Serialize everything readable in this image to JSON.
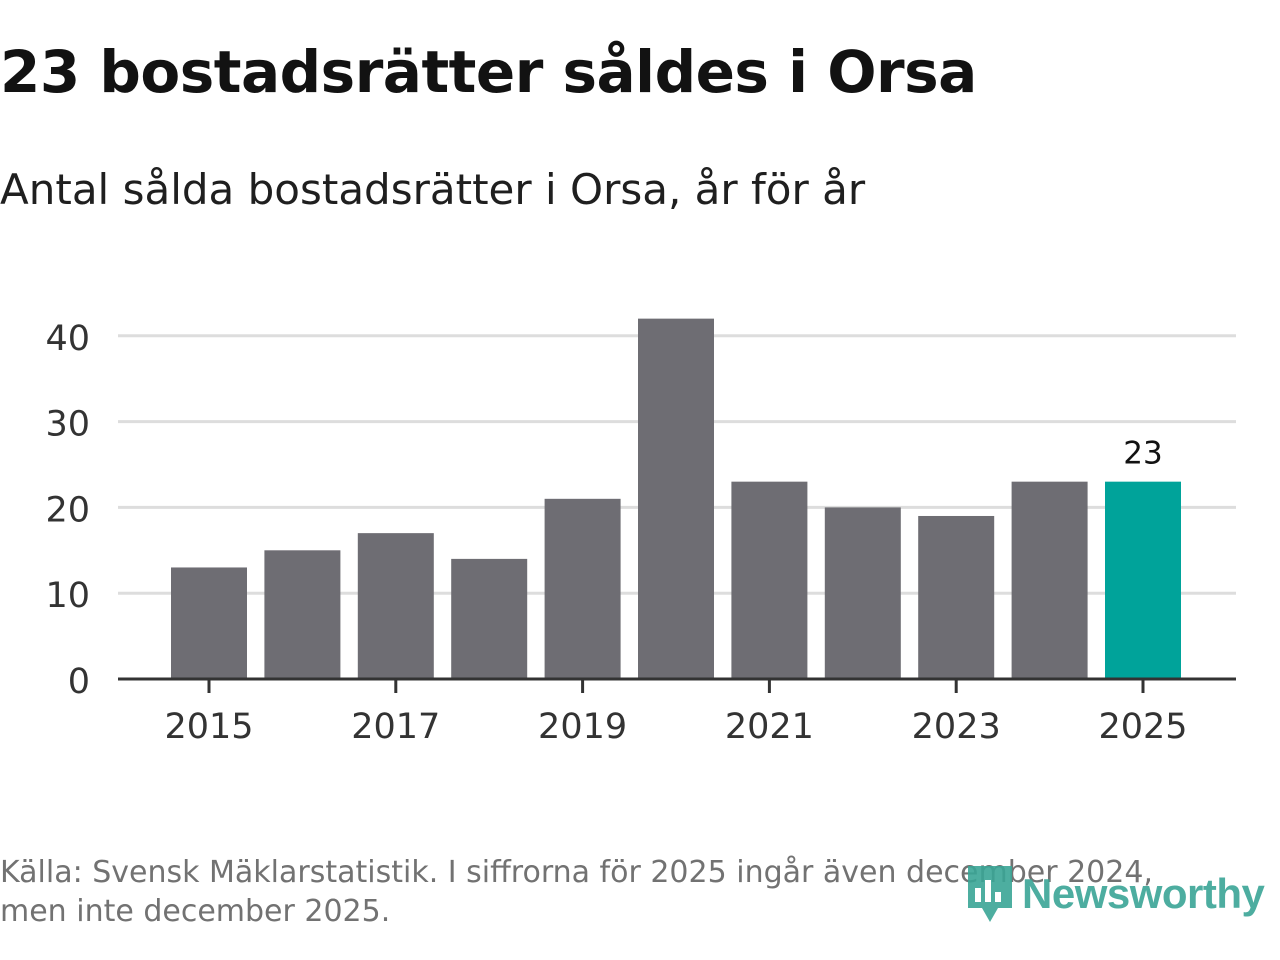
{
  "title": "23 bostadsrätter såldes i Orsa",
  "subtitle": "Antal sålda bostadsrätter i Orsa, år för år",
  "source": "Källa: Svensk Mäklarstatistik. I siffrorna för 2025 ingår även december 2024, men inte december 2025.",
  "logo": {
    "text": "Newsworthy",
    "color": "#3aa596"
  },
  "colors": {
    "bar": "#6e6d73",
    "highlight": "#00a39a",
    "grid": "#dddddd",
    "axis": "#333333"
  },
  "chart_data": {
    "type": "bar",
    "categories": [
      "2015",
      "2016",
      "2017",
      "2018",
      "2019",
      "2020",
      "2021",
      "2022",
      "2023",
      "2024",
      "2025"
    ],
    "values": [
      13,
      15,
      17,
      14,
      21,
      42,
      23,
      20,
      19,
      23,
      23
    ],
    "highlight_index": 10,
    "data_labels": [
      {
        "category": "2025",
        "text": "23"
      }
    ],
    "x_tick_labels": [
      "2015",
      "2017",
      "2019",
      "2021",
      "2023",
      "2025"
    ],
    "y_ticks": [
      0,
      10,
      20,
      30,
      40
    ],
    "ylim": [
      0,
      42
    ],
    "grid": true,
    "xlabel": "",
    "ylabel": ""
  }
}
